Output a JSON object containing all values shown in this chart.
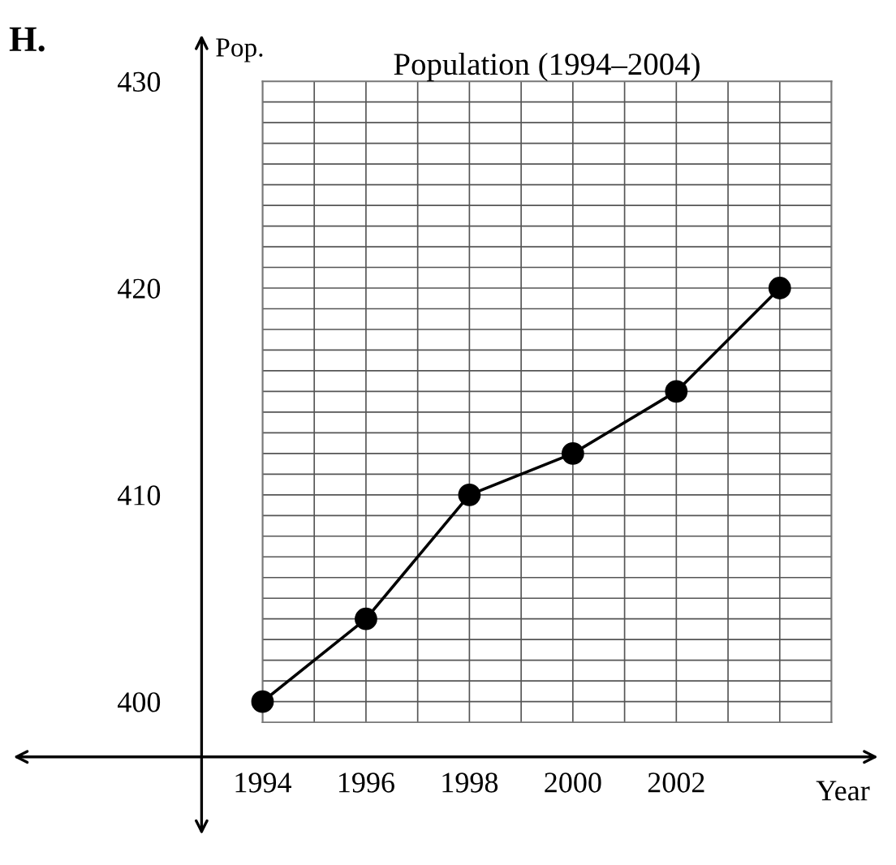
{
  "chart_data": {
    "type": "line",
    "title": "Population (1994–2004)",
    "xlabel": "Year",
    "ylabel": "Pop.",
    "annotations": [
      "H."
    ],
    "x": [
      1994,
      1996,
      1998,
      2000,
      2002,
      2004
    ],
    "series": [
      {
        "color": "#000000",
        "values": [
          400,
          404,
          410,
          412,
          415,
          420
        ]
      }
    ],
    "marker": "circle",
    "line_style": "solid",
    "grid": true,
    "xlim": [
      1994,
      2005
    ],
    "xticks": [
      1994,
      {
        "value": 1995,
        "label": null
      },
      1996,
      {
        "value": 1997,
        "label": null
      },
      1998,
      {
        "value": 1999,
        "label": null
      },
      2000,
      {
        "value": 2001,
        "label": null
      },
      2002,
      {
        "value": 2003,
        "label": null
      },
      {
        "value": 2004,
        "label": null
      },
      {
        "value": 2005,
        "label": null
      }
    ],
    "ylim": [
      399,
      430
    ],
    "yticks": [
      400,
      {
        "value": 401,
        "label": null
      },
      {
        "value": 402,
        "label": null
      },
      {
        "value": 403,
        "label": null
      },
      {
        "value": 404,
        "label": null
      },
      {
        "value": 405,
        "label": null
      },
      {
        "value": 406,
        "label": null
      },
      {
        "value": 407,
        "label": null
      },
      {
        "value": 408,
        "label": null
      },
      {
        "value": 409,
        "label": null
      },
      410,
      {
        "value": 411,
        "label": null
      },
      {
        "value": 412,
        "label": null
      },
      {
        "value": 413,
        "label": null
      },
      {
        "value": 414,
        "label": null
      },
      {
        "value": 415,
        "label": null
      },
      {
        "value": 416,
        "label": null
      },
      {
        "value": 417,
        "label": null
      },
      {
        "value": 418,
        "label": null
      },
      {
        "value": 419,
        "label": null
      },
      420,
      {
        "value": 421,
        "label": null
      },
      {
        "value": 422,
        "label": null
      },
      {
        "value": 423,
        "label": null
      },
      {
        "value": 424,
        "label": null
      },
      {
        "value": 425,
        "label": null
      },
      {
        "value": 426,
        "label": null
      },
      {
        "value": 427,
        "label": null
      },
      {
        "value": 428,
        "label": null
      },
      {
        "value": 429,
        "label": null
      },
      430
    ]
  }
}
